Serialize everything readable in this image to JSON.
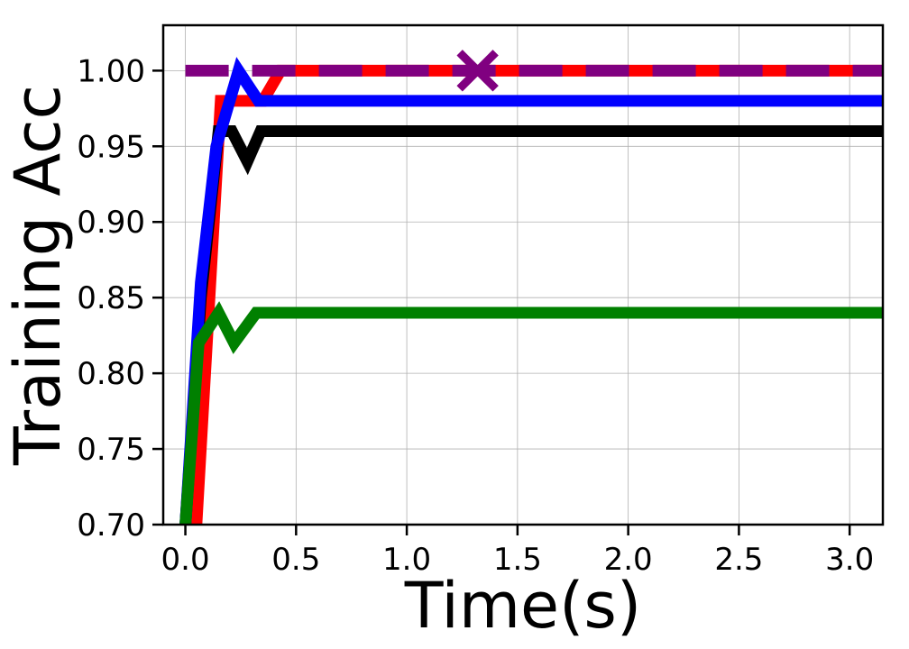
{
  "chart_data": {
    "type": "line",
    "xlabel": "Time(s)",
    "ylabel": "Training Acc",
    "xlim": [
      -0.1,
      3.15
    ],
    "ylim": [
      0.7,
      1.03
    ],
    "xticks": [
      "0.0",
      "0.5",
      "1.0",
      "1.5",
      "2.0",
      "2.5",
      "3.0"
    ],
    "xtick_values": [
      0.0,
      0.5,
      1.0,
      1.5,
      2.0,
      2.5,
      3.0
    ],
    "yticks": [
      "0.70",
      "0.75",
      "0.80",
      "0.85",
      "0.90",
      "0.95",
      "1.00"
    ],
    "ytick_values": [
      0.7,
      0.75,
      0.8,
      0.85,
      0.9,
      0.95,
      1.0
    ],
    "grid": true,
    "legend": "none",
    "series": [
      {
        "color": "#ff0000",
        "style": "solid",
        "x": [
          0.05,
          0.16,
          0.35,
          0.43,
          3.15
        ],
        "y": [
          0.7,
          0.98,
          0.98,
          1.0,
          1.0
        ]
      },
      {
        "color": "#000000",
        "style": "solid",
        "x": [
          0.0,
          0.07,
          0.15,
          0.21,
          0.28,
          0.34,
          3.15
        ],
        "y": [
          0.7,
          0.85,
          0.96,
          0.96,
          0.94,
          0.96,
          0.96
        ]
      },
      {
        "color": "#0000ff",
        "style": "solid",
        "x": [
          0.0,
          0.07,
          0.14,
          0.24,
          0.33,
          3.15
        ],
        "y": [
          0.7,
          0.86,
          0.95,
          1.0,
          0.98,
          0.98
        ]
      },
      {
        "color": "#008000",
        "style": "solid",
        "x": [
          0.0,
          0.06,
          0.15,
          0.22,
          0.32,
          3.15
        ],
        "y": [
          0.7,
          0.82,
          0.84,
          0.82,
          0.84,
          0.84
        ]
      },
      {
        "color": "#800080",
        "style": "dashed",
        "x": [
          0.0,
          3.15
        ],
        "y": [
          1.0,
          1.0
        ]
      }
    ],
    "markers": [
      {
        "color": "#800080",
        "shape": "x",
        "x": 1.32,
        "y": 1.0
      }
    ]
  }
}
